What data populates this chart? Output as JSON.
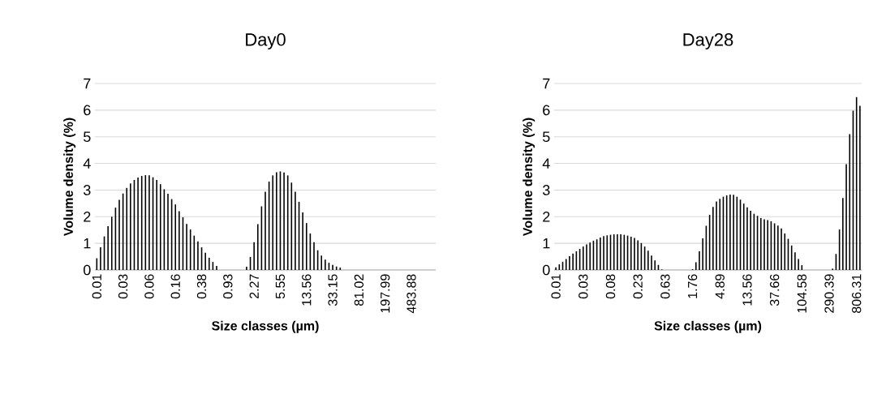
{
  "chart_data": [
    {
      "type": "bar",
      "title": "Day0",
      "xlabel": "Size classes (µm)",
      "ylabel": "Volume density (%)",
      "color": "#000000",
      "ylim": [
        0,
        7
      ],
      "yticks": [
        0,
        1,
        2,
        3,
        4,
        5,
        6,
        7
      ],
      "grid": "y",
      "categories": [
        "0.01",
        null,
        null,
        null,
        null,
        null,
        null,
        "0.03",
        null,
        null,
        null,
        null,
        null,
        null,
        "0.06",
        null,
        null,
        null,
        null,
        null,
        null,
        "0.16",
        null,
        null,
        null,
        null,
        null,
        null,
        "0.38",
        null,
        null,
        null,
        null,
        null,
        null,
        "0.93",
        null,
        null,
        null,
        null,
        null,
        null,
        "2.27",
        null,
        null,
        null,
        null,
        null,
        null,
        "5.55",
        null,
        null,
        null,
        null,
        null,
        null,
        "13.56",
        null,
        null,
        null,
        null,
        null,
        null,
        "33.15",
        null,
        null,
        null,
        null,
        null,
        null,
        "81.02",
        null,
        null,
        null,
        null,
        null,
        null,
        "197.99",
        null,
        null,
        null,
        null,
        null,
        null,
        "483.88",
        null,
        null,
        null,
        null,
        null,
        null
      ],
      "values": [
        0.44,
        0.85,
        1.26,
        1.64,
        2.0,
        2.34,
        2.63,
        2.87,
        3.08,
        3.25,
        3.38,
        3.47,
        3.53,
        3.56,
        3.55,
        3.48,
        3.38,
        3.22,
        3.03,
        2.86,
        2.66,
        2.46,
        2.21,
        1.98,
        1.73,
        1.52,
        1.29,
        1.07,
        0.85,
        0.65,
        0.46,
        0.3,
        0.15,
        0,
        0,
        0,
        0,
        0,
        0,
        0,
        0.12,
        0.49,
        1.04,
        1.72,
        2.39,
        2.94,
        3.32,
        3.55,
        3.67,
        3.7,
        3.66,
        3.55,
        3.28,
        2.94,
        2.56,
        2.16,
        1.76,
        1.37,
        1.04,
        0.74,
        0.54,
        0.39,
        0.27,
        0.19,
        0.13,
        0.09,
        0,
        0,
        0,
        0,
        0,
        0,
        0,
        0,
        0,
        0,
        0,
        0,
        0,
        0,
        0,
        0,
        0,
        0,
        0,
        0,
        0,
        0,
        0,
        0,
        0
      ]
    },
    {
      "type": "bar",
      "title": "Day28",
      "xlabel": "Size classes (µm)",
      "ylabel": "Volume density (%)",
      "color": "#000000",
      "ylim": [
        0,
        7
      ],
      "yticks": [
        0,
        1,
        2,
        3,
        4,
        5,
        6,
        7
      ],
      "grid": "y",
      "categories": [
        "0.01",
        null,
        null,
        null,
        null,
        null,
        null,
        null,
        "0.03",
        null,
        null,
        null,
        null,
        null,
        null,
        null,
        "0.08",
        null,
        null,
        null,
        null,
        null,
        null,
        null,
        "0.23",
        null,
        null,
        null,
        null,
        null,
        null,
        null,
        "0.63",
        null,
        null,
        null,
        null,
        null,
        null,
        null,
        "1.76",
        null,
        null,
        null,
        null,
        null,
        null,
        null,
        "4.89",
        null,
        null,
        null,
        null,
        null,
        null,
        null,
        "13.56",
        null,
        null,
        null,
        null,
        null,
        null,
        null,
        "37.66",
        null,
        null,
        null,
        null,
        null,
        null,
        null,
        "104.58",
        null,
        null,
        null,
        null,
        null,
        null,
        null,
        "290.39",
        null,
        null,
        null,
        null,
        null,
        null,
        null,
        "806.31",
        null
      ],
      "values": [
        0.1,
        0.21,
        0.31,
        0.41,
        0.52,
        0.62,
        0.7,
        0.79,
        0.88,
        0.96,
        1.03,
        1.1,
        1.15,
        1.22,
        1.27,
        1.3,
        1.32,
        1.34,
        1.34,
        1.34,
        1.32,
        1.29,
        1.25,
        1.2,
        1.11,
        1.01,
        0.88,
        0.72,
        0.54,
        0.36,
        0.19,
        0.02,
        0,
        0,
        0,
        0,
        0,
        0,
        0,
        0,
        0.03,
        0.29,
        0.7,
        1.19,
        1.66,
        2.07,
        2.37,
        2.57,
        2.67,
        2.75,
        2.8,
        2.83,
        2.82,
        2.75,
        2.64,
        2.49,
        2.35,
        2.22,
        2.11,
        2.03,
        1.95,
        1.9,
        1.87,
        1.83,
        1.75,
        1.67,
        1.56,
        1.37,
        1.17,
        0.92,
        0.66,
        0.41,
        0.18,
        0,
        0,
        0,
        0,
        0,
        0,
        0,
        0,
        0.05,
        0.6,
        1.52,
        2.7,
        3.97,
        5.1,
        5.98,
        6.49,
        6.16
      ]
    }
  ]
}
